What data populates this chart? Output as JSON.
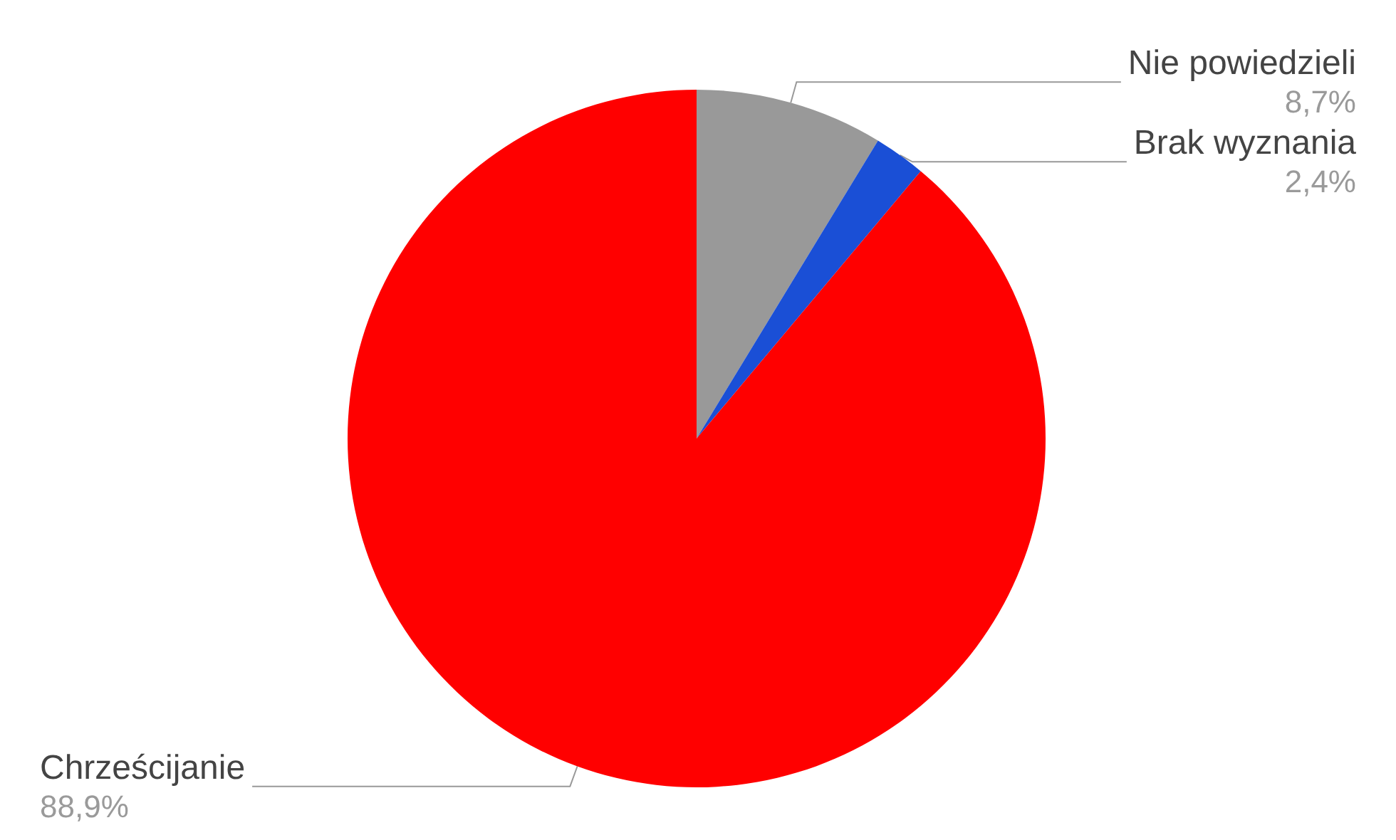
{
  "chart_data": {
    "type": "pie",
    "categories": [
      "Nie powiedzieli",
      "Brak wyznania",
      "Chrześcijanie"
    ],
    "values": [
      8.7,
      2.4,
      88.9
    ],
    "colors": [
      "#999999",
      "#1a4fd6",
      "#ff0000"
    ],
    "value_labels": [
      "8,7%",
      "2,4%",
      "88,9%"
    ],
    "legend": false
  }
}
